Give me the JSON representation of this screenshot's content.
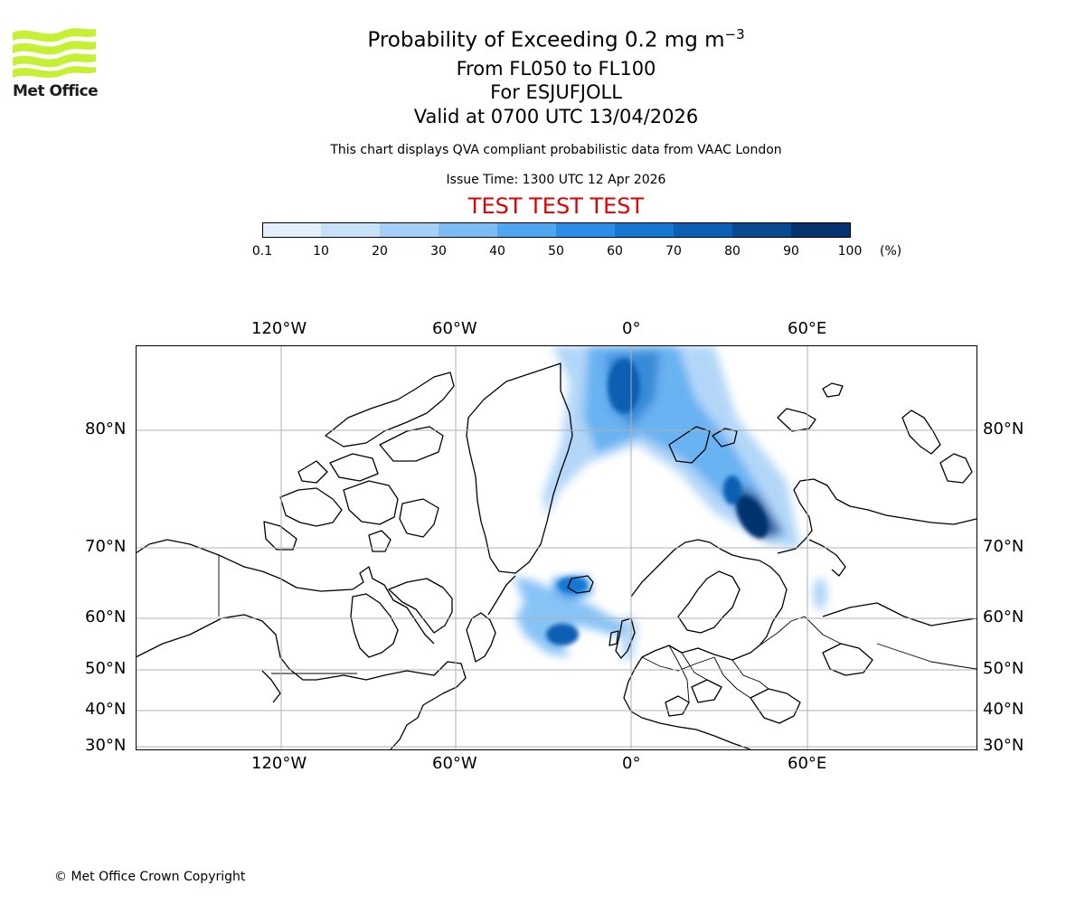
{
  "logo": {
    "text": "Met Office"
  },
  "title": {
    "line1_prefix": "Probability of Exceeding 0.2 mg m",
    "line1_exponent": "−3",
    "line2": "From FL050 to FL100",
    "line3": "For ESJUFJOLL",
    "line4": "Valid at 0700 UTC 13/04/2026"
  },
  "subtitle": "This chart displays QVA compliant probabilistic data from VAAC London",
  "issue_time": "Issue Time: 1300 UTC 12 Apr 2026",
  "test_banner": "TEST TEST TEST",
  "colorbar": {
    "unit": "(%)",
    "ticks": [
      "0.1",
      "10",
      "20",
      "30",
      "40",
      "50",
      "60",
      "70",
      "80",
      "90",
      "100"
    ],
    "colors": [
      "#e3f0fc",
      "#c7e1f9",
      "#a6d0f7",
      "#7cbdf5",
      "#4fa6f0",
      "#2a8ee8",
      "#1577d2",
      "#0a5fb4",
      "#084a91",
      "#063370"
    ]
  },
  "map": {
    "lon_labels_top": [
      "120°W",
      "60°W",
      "0°",
      "60°E"
    ],
    "lon_labels_bottom": [
      "120°W",
      "60°W",
      "0°",
      "60°E"
    ],
    "lat_labels_left": [
      "80°N",
      "70°N",
      "60°N",
      "50°N",
      "40°N",
      "30°N"
    ],
    "lat_labels_right": [
      "80°N",
      "70°N",
      "60°N",
      "50°N",
      "40°N",
      "30°N"
    ]
  },
  "copyright": "© Met Office Crown Copyright"
}
